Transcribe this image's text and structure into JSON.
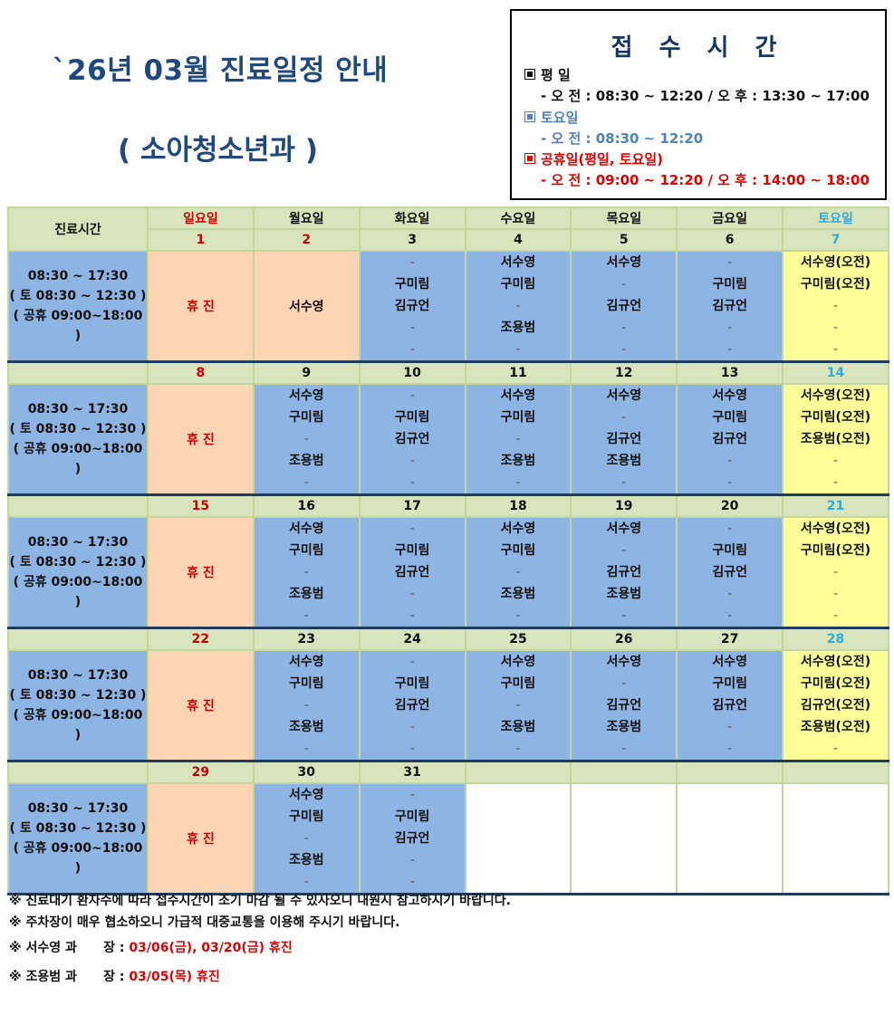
{
  "header": {
    "title": "`26년 03월 진료일정 안내",
    "subtitle": "( 소아청소년과 )"
  },
  "reception_hours": {
    "title": "접 수 시 간",
    "weekday_label": "평  일",
    "weekday_hours": "- 오 전 :  08:30 ~ 12:20 / 오 후 : 13:30 ~ 17:00",
    "saturday_label": "토요일",
    "saturday_hours": "- 오 전 :  08:30 ~ 12:20",
    "holiday_label": "공휴일(평일, 토요일)",
    "holiday_hours": "- 오 전 :  09:00 ~ 12:20 / 오 후 : 14:00 ~ 18:00",
    "colors": {
      "weekday": "#111111",
      "saturday": "#4f81bd",
      "holiday": "#e00000"
    }
  },
  "calendar": {
    "time_header": "진료시간",
    "days": [
      "일요일",
      "월요일",
      "화요일",
      "수요일",
      "목요일",
      "금요일",
      "토요일"
    ],
    "time_text": [
      "08:30 ~ 17:30",
      "( 토 08:30 ~ 12:30 )",
      "( 공휴 09:00~18:00 )"
    ],
    "closed_label": "휴 진",
    "weeks": [
      {
        "dates": [
          "1",
          "2",
          "3",
          "4",
          "5",
          "6",
          "7"
        ],
        "mon_holiday": "서수영",
        "cells": [
          [
            "-",
            "구미림",
            "김규언",
            "-",
            "-"
          ],
          [
            "서수영",
            "구미림",
            "-",
            "조용범",
            "-"
          ],
          [
            "서수영",
            "-",
            "김규언",
            "-",
            "-"
          ],
          [
            "-",
            "구미림",
            "김규언",
            "-",
            "-"
          ],
          [
            "서수영(오전)",
            "구미림(오전)",
            "-",
            "-",
            "-"
          ]
        ]
      },
      {
        "dates": [
          "8",
          "9",
          "10",
          "11",
          "12",
          "13",
          "14"
        ],
        "cells": [
          [
            "서수영",
            "구미림",
            "-",
            "조용범",
            "-"
          ],
          [
            "-",
            "구미림",
            "김규언",
            "-",
            "-"
          ],
          [
            "서수영",
            "구미림",
            "-",
            "조용범",
            "-"
          ],
          [
            "서수영",
            "-",
            "김규언",
            "조용범",
            "-"
          ],
          [
            "서수영",
            "구미림",
            "김규언",
            "-",
            "-"
          ],
          [
            "서수영(오전)",
            "구미림(오전)",
            "조용범(오전)",
            "-",
            "-"
          ]
        ]
      },
      {
        "dates": [
          "15",
          "16",
          "17",
          "18",
          "19",
          "20",
          "21"
        ],
        "cells": [
          [
            "서수영",
            "구미림",
            "-",
            "조용범",
            "-"
          ],
          [
            "-",
            "구미림",
            "김규언",
            "-",
            "-"
          ],
          [
            "서수영",
            "구미림",
            "-",
            "조용범",
            "-"
          ],
          [
            "서수영",
            "-",
            "김규언",
            "조용범",
            "-"
          ],
          [
            "-",
            "구미림",
            "김규언",
            "-",
            "-"
          ],
          [
            "서수영(오전)",
            "구미림(오전)",
            "-",
            "-",
            "-"
          ]
        ]
      },
      {
        "dates": [
          "22",
          "23",
          "24",
          "25",
          "26",
          "27",
          "28"
        ],
        "cells": [
          [
            "서수영",
            "구미림",
            "-",
            "조용범",
            "-"
          ],
          [
            "-",
            "구미림",
            "김규언",
            "-",
            "-"
          ],
          [
            "서수영",
            "구미림",
            "-",
            "조용범",
            "-"
          ],
          [
            "서수영",
            "-",
            "김규언",
            "조용범",
            "-"
          ],
          [
            "서수영",
            "구미림",
            "김규언",
            "-",
            "-"
          ],
          [
            "서수영(오전)",
            "구미림(오전)",
            "김규언(오전)",
            "조용범(오전)",
            "-"
          ]
        ]
      },
      {
        "dates": [
          "29",
          "30",
          "31",
          "",
          "",
          "",
          ""
        ],
        "cells": [
          [
            "서수영",
            "구미림",
            "-",
            "조용범",
            "-"
          ],
          [
            "-",
            "구미림",
            "김규언",
            "-",
            "-"
          ]
        ]
      }
    ],
    "colors": {
      "header_bg": "#d8e4bc",
      "time_bg": "#8eb4e3",
      "sunday_bg": "#fcd5b4",
      "weekday_bg": "#8eb4e3",
      "saturday_bg": "#ffff99",
      "sunday_text": "#d00000",
      "saturday_text": "#2eaadc",
      "week_separator": "#1f3b5d"
    }
  },
  "notes": {
    "note1": "※ 진료대기 환자수에 따라 접수시간이 조기 마감 될 수 있사오니 내원시 참고하시기 바랍니다.",
    "note2": "※ 주차장이 매우 협소하오니 가급적 대중교통을 이용해 주시기 바랍니다.",
    "note3_label": "※ 서수영 과      장 : ",
    "note3_value": "03/06(금), 03/20(금) 휴진",
    "note4_label": "※ 조용범 과      장 : ",
    "note4_value": "03/05(목) 휴진"
  }
}
